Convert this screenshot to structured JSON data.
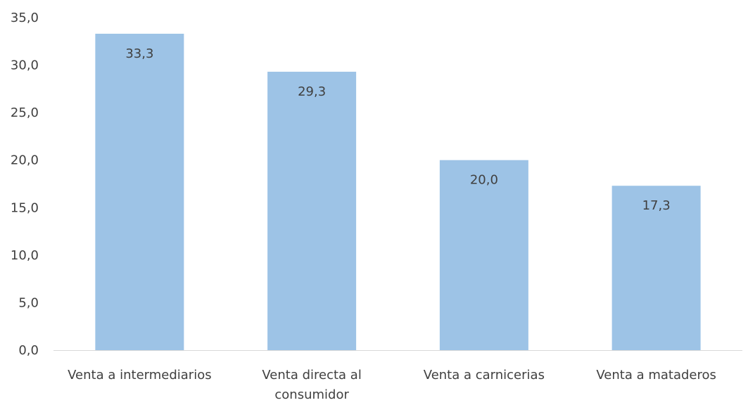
{
  "chart_data": {
    "type": "bar",
    "categories": [
      [
        "Venta a intermediarios"
      ],
      [
        "Venta directa al",
        "consumidor"
      ],
      [
        "Venta a carnicerias"
      ],
      [
        "Venta a mataderos"
      ]
    ],
    "values": [
      33.3,
      29.3,
      20.0,
      17.3
    ],
    "value_labels": [
      "33,3",
      "29,3",
      "20,0",
      "17,3"
    ],
    "yticks": [
      {
        "value": 0,
        "label": "0,0"
      },
      {
        "value": 5,
        "label": "5,0"
      },
      {
        "value": 10,
        "label": "10,0"
      },
      {
        "value": 15,
        "label": "15,0"
      },
      {
        "value": 20,
        "label": "20,0"
      },
      {
        "value": 25,
        "label": "25,0"
      },
      {
        "value": 30,
        "label": "30,0"
      },
      {
        "value": 35,
        "label": "35,0"
      }
    ],
    "ylim": [
      0,
      35
    ],
    "title": "",
    "xlabel": "",
    "ylabel": "",
    "grid": false,
    "legend": "none",
    "colors": {
      "bar": "#9DC3E6",
      "axis_line": "#D9D9D9",
      "text": "#404040"
    }
  }
}
